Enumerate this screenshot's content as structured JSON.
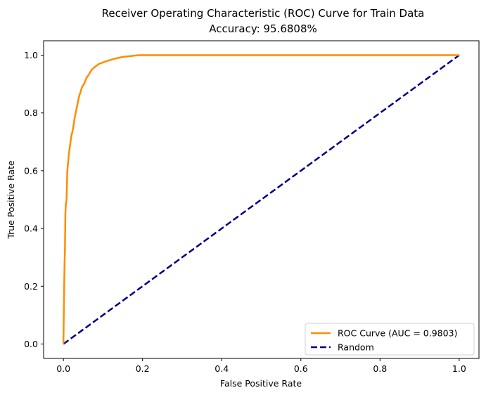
{
  "chart_data": {
    "type": "line",
    "title": "Receiver Operating Characteristic (ROC) Curve for Train Data",
    "subtitle": "Accuracy: 95.6808%",
    "xlabel": "False Positive Rate",
    "ylabel": "True Positive Rate",
    "xlim": [
      -0.05,
      1.05
    ],
    "ylim": [
      -0.05,
      1.05
    ],
    "xticks": [
      0.0,
      0.2,
      0.4,
      0.6,
      0.8,
      1.0
    ],
    "xtick_labels": [
      "0.0",
      "0.2",
      "0.4",
      "0.6",
      "0.8",
      "1.0"
    ],
    "yticks": [
      0.0,
      0.2,
      0.4,
      0.6,
      0.8,
      1.0
    ],
    "ytick_labels": [
      "0.0",
      "0.2",
      "0.4",
      "0.6",
      "0.8",
      "1.0"
    ],
    "grid": false,
    "legend_position": "lower-right",
    "series": [
      {
        "name": "ROC Curve (AUC = 0.9803)",
        "color": "#ff8c00",
        "dash": "solid",
        "x": [
          0.0,
          0.001,
          0.002,
          0.003,
          0.004,
          0.005,
          0.006,
          0.008,
          0.01,
          0.012,
          0.014,
          0.016,
          0.018,
          0.02,
          0.022,
          0.025,
          0.028,
          0.031,
          0.034,
          0.037,
          0.04,
          0.043,
          0.047,
          0.052,
          0.058,
          0.065,
          0.072,
          0.08,
          0.09,
          0.1,
          0.115,
          0.13,
          0.15,
          0.17,
          0.19,
          0.25,
          0.4,
          0.6,
          0.8,
          1.0
        ],
        "y": [
          0.0,
          0.1,
          0.2,
          0.28,
          0.33,
          0.45,
          0.48,
          0.5,
          0.6,
          0.63,
          0.66,
          0.68,
          0.7,
          0.72,
          0.73,
          0.75,
          0.78,
          0.8,
          0.82,
          0.84,
          0.86,
          0.87,
          0.89,
          0.9,
          0.92,
          0.935,
          0.95,
          0.96,
          0.97,
          0.975,
          0.982,
          0.988,
          0.994,
          0.997,
          1.0,
          1.0,
          1.0,
          1.0,
          1.0,
          1.0
        ]
      },
      {
        "name": "Random",
        "color": "#000080",
        "dash": "dashed",
        "x": [
          0.0,
          1.0
        ],
        "y": [
          0.0,
          1.0
        ]
      }
    ]
  }
}
